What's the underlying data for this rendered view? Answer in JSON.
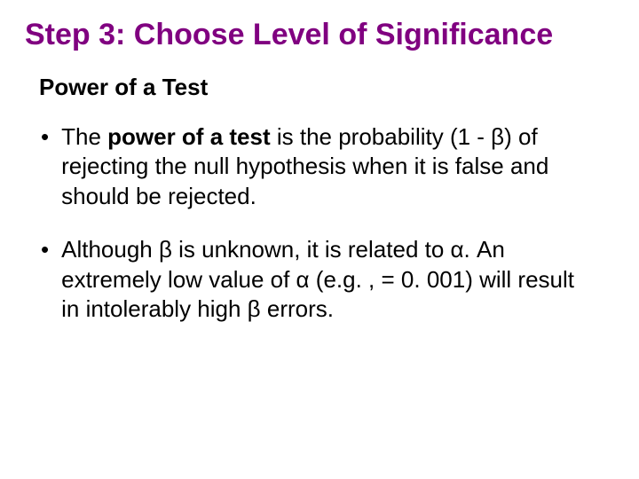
{
  "title": {
    "text": "Step 3: Choose Level of Significance",
    "color": "#800080",
    "fontsize": 34,
    "fontweight": "bold"
  },
  "subtitle": {
    "text": "Power of a Test",
    "color": "#000000",
    "fontsize": 26,
    "fontweight": "bold"
  },
  "bullets": [
    {
      "marker": "•",
      "parts": [
        {
          "text": "The ",
          "bold": false
        },
        {
          "text": "power of a test",
          "bold": true
        },
        {
          "text": " is the probability (1 - β) of rejecting the null hypothesis when it is false and should be rejected.",
          "bold": false
        }
      ]
    },
    {
      "marker": "•",
      "parts": [
        {
          "text": "Although β is unknown, it is related to α.  An extremely low value of  α (e.g. , = 0. 001) will result in intolerably high β errors.",
          "bold": false
        }
      ]
    }
  ],
  "styling": {
    "background_color": "#ffffff",
    "body_text_color": "#000000",
    "body_fontsize": 26,
    "line_height": 1.3,
    "font_family": "Arial",
    "slide_width": 720,
    "slide_height": 540
  }
}
